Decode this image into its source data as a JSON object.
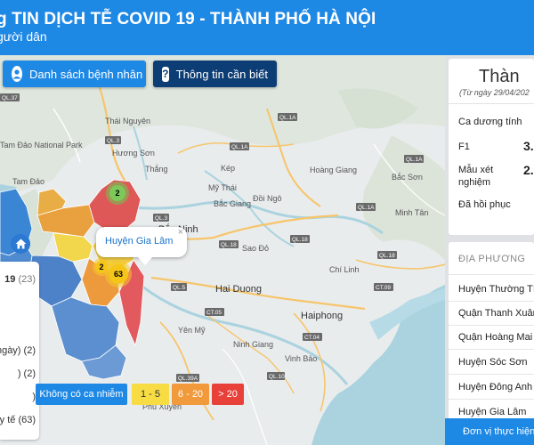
{
  "header": {
    "title": "g TIN DỊCH TỄ COVID 19 - THÀNH PHỐ HÀ NỘI",
    "subtitle": "gười dân"
  },
  "toolbar": {
    "patients_label": "Danh sách bệnh nhân",
    "info_label": "Thông tin cần biết",
    "info_icon_glyph": "?"
  },
  "map": {
    "place_labels": [
      "Thái Nguyên",
      "Tam Đảo National Park",
      "Hương Sơn",
      "Thắng",
      "Mỹ Thái",
      "Bắc Giang",
      "Đồi Ngô",
      "Kép",
      "Hoàng Giang",
      "Bắc Ninh",
      "Sao Đỏ",
      "Hai Duong",
      "Haiphong",
      "Ninh Giang",
      "Vinh Bảo",
      "Chí Linh",
      "Bắc Sơn",
      "Minh Tân",
      "Tam Đảo",
      "Phú Xuyên",
      "Yên Mỹ"
    ],
    "road_labels": [
      "QL.37",
      "QL.3",
      "QL.1A",
      "QL.1A",
      "QL.18",
      "QL.18",
      "QL.3",
      "QL.5",
      "CT.05",
      "CT.09",
      "CT.04",
      "QL.39A",
      "QL.10",
      "QL.1A",
      "QL.1A",
      "QL.18"
    ],
    "clusters": [
      {
        "count": "2",
        "color": "green"
      },
      {
        "count": "63",
        "color": "yellow"
      },
      {
        "count": "2",
        "color": "yellow"
      }
    ],
    "popup": {
      "text": "Huyện Gia Lâm",
      "close": "×"
    }
  },
  "filter": {
    "items": [
      {
        "prefix": "19",
        "count": "(23)",
        "bold": true
      },
      {
        "prefix": "",
        "count": "",
        "bold": false
      },
      {
        "prefix": "",
        "count": "",
        "bold": false
      },
      {
        "prefix": "ngày)",
        "count": "(2)",
        "bold": false
      },
      {
        "prefix": ")",
        "count": "(2)",
        "bold": false
      },
      {
        "prefix": ")",
        "count": "",
        "bold": false
      },
      {
        "prefix": "y tế",
        "count": "(63)",
        "bold": false
      }
    ]
  },
  "legend": {
    "none": "Không có ca nhiễm",
    "low": "1 - 5",
    "mid": "6 - 20",
    "high": "> 20",
    "colors": {
      "none": "#1e88e5",
      "low": "#f7dc43",
      "mid": "#f19a3b",
      "high": "#e8413a"
    }
  },
  "panel": {
    "title": "Thàn",
    "date": "(Từ ngày 29/04/202",
    "stats": [
      {
        "label": "Ca dương tính",
        "value": ""
      },
      {
        "label": "F1",
        "value": "3."
      },
      {
        "label": "Mẫu xét nghiệm",
        "value": "2."
      },
      {
        "label": "Đã hồi phục",
        "value": ""
      }
    ],
    "districts_header": "ĐỊA PHƯƠNG",
    "districts": [
      "Huyện Thường Tín",
      "Quận Thanh Xuân",
      "Quận Hoàng Mai",
      "Huyện Sóc Sơn",
      "Huyện Đông Anh",
      "Huyện Gia Lâm"
    ],
    "footer": "Đơn vị thực hiện: S"
  },
  "colors": {
    "header_bg": "#1e88e5",
    "info_button_bg": "#0d3d75",
    "map_bg": "#e9eced",
    "water": "#aad3df",
    "road": "#f6c56b"
  }
}
